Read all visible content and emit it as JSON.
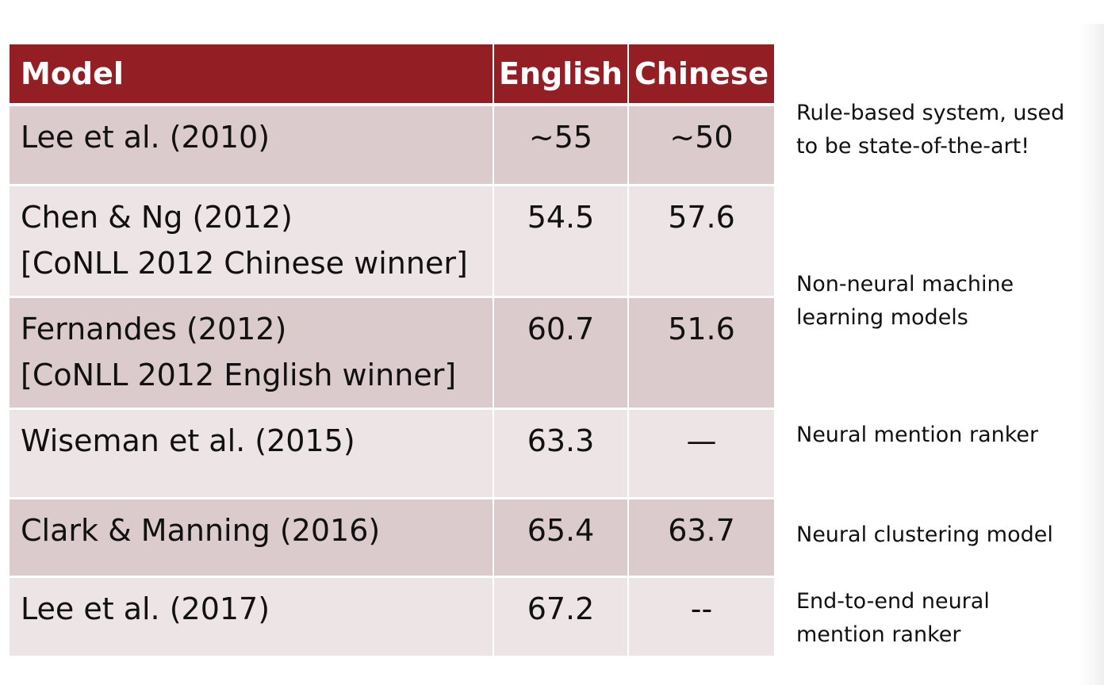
{
  "table": {
    "headers": {
      "model": "Model",
      "english": "English",
      "chinese": "Chinese"
    },
    "rows": [
      {
        "model": [
          "Lee et al. (2010)"
        ],
        "english": "~55",
        "chinese": "~50"
      },
      {
        "model": [
          "Chen & Ng (2012)",
          "[CoNLL 2012 Chinese winner]"
        ],
        "english": "54.5",
        "chinese": "57.6"
      },
      {
        "model": [
          "Fernandes (2012)",
          "[CoNLL 2012 English winner]"
        ],
        "english": "60.7",
        "chinese": "51.6"
      },
      {
        "model": [
          "Wiseman et al. (2015)"
        ],
        "english": "63.3",
        "chinese": "—"
      },
      {
        "model": [
          "Clark & Manning (2016)"
        ],
        "english": "65.4",
        "chinese": "63.7"
      },
      {
        "model": [
          "Lee et al. (2017)"
        ],
        "english": "67.2",
        "chinese": "--"
      }
    ]
  },
  "notes": [
    [
      "Rule-based system, used",
      "to be state-of-the-art!"
    ],
    [
      "Non-neural machine",
      "learning models"
    ],
    [
      "Neural mention ranker"
    ],
    [
      "Neural clustering model"
    ],
    [
      "End-to-end neural",
      "mention ranker"
    ]
  ],
  "colors": {
    "header_bg": "#931e24",
    "row_dark": "#dccbcc",
    "row_light": "#ede4e5"
  }
}
